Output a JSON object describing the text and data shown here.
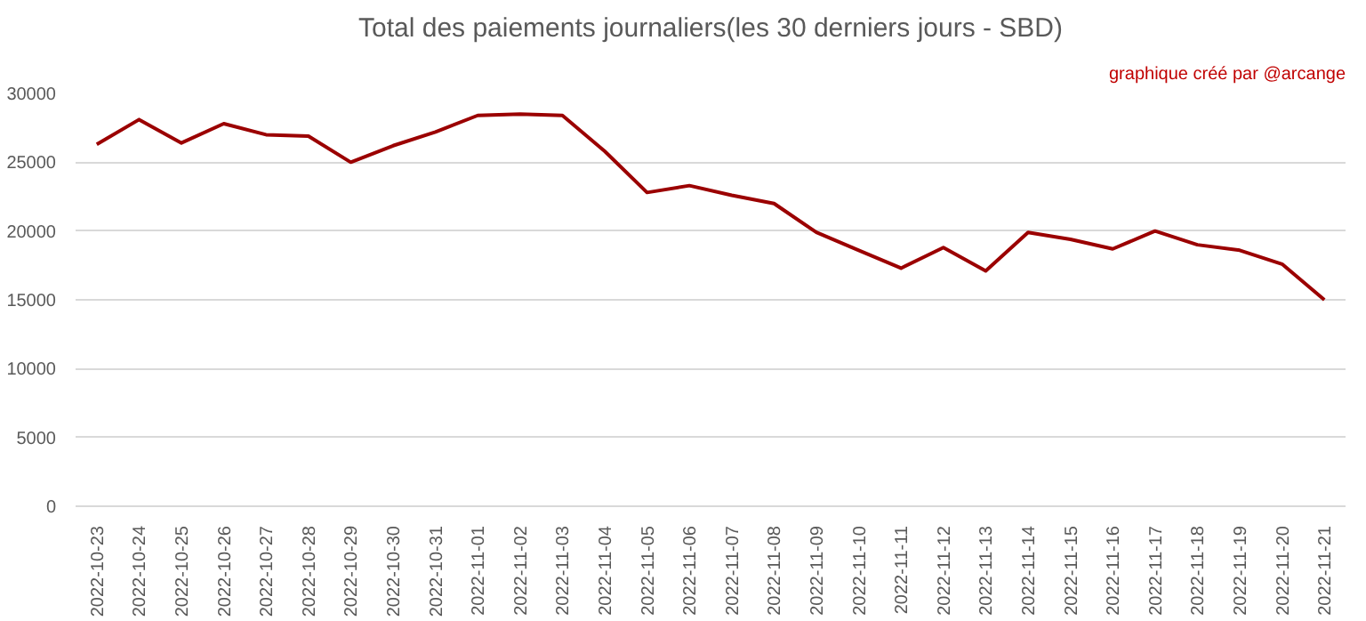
{
  "chart_data": {
    "type": "line",
    "title": "Total des paiements journaliers(les 30 derniers jours - SBD)",
    "annotations": [
      "graphique créé par @arcange"
    ],
    "categories": [
      "2022-10-23",
      "2022-10-24",
      "2022-10-25",
      "2022-10-26",
      "2022-10-27",
      "2022-10-28",
      "2022-10-29",
      "2022-10-30",
      "2022-10-31",
      "2022-11-01",
      "2022-11-02",
      "2022-11-03",
      "2022-11-04",
      "2022-11-05",
      "2022-11-06",
      "2022-11-07",
      "2022-11-08",
      "2022-11-09",
      "2022-11-10",
      "2022-11-11",
      "2022-11-12",
      "2022-11-13",
      "2022-11-14",
      "2022-11-15",
      "2022-11-16",
      "2022-11-17",
      "2022-11-18",
      "2022-11-19",
      "2022-11-20",
      "2022-11-21"
    ],
    "series": [
      {
        "color": "#9b0000",
        "values": [
          26300,
          28100,
          26400,
          27800,
          27000,
          26900,
          25000,
          26200,
          27200,
          28400,
          28500,
          28400,
          25800,
          22800,
          23300,
          22600,
          22000,
          19900,
          18600,
          17300,
          18800,
          17100,
          19900,
          19400,
          18700,
          20000,
          19000,
          18600,
          17600,
          15000
        ]
      }
    ],
    "ylim": [
      0,
      30000
    ],
    "yticks": [
      0,
      5000,
      10000,
      15000,
      20000,
      25000,
      30000
    ],
    "grid": "y",
    "line_style": "solid"
  }
}
